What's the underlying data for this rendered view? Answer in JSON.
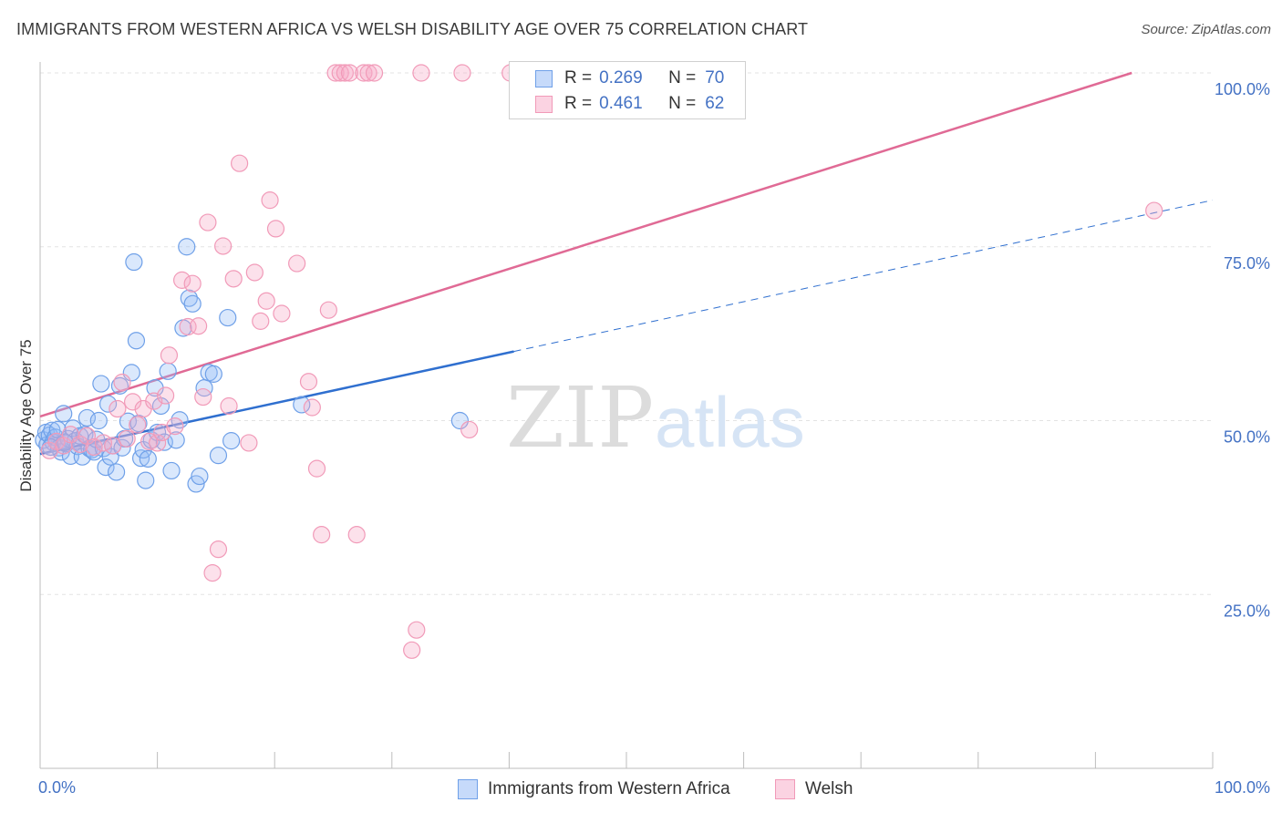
{
  "title": "IMMIGRANTS FROM WESTERN AFRICA VS WELSH DISABILITY AGE OVER 75 CORRELATION CHART",
  "source": "Source: ZipAtlas.com",
  "watermark": {
    "zip": "ZIP",
    "atlas": "atlas"
  },
  "colors": {
    "blue": "#6fa0e8",
    "blue_line": "#2f6fcf",
    "pink": "#f19ab8",
    "pink_line": "#e06a95",
    "tick": "#4472c4"
  },
  "legend_top": [
    {
      "r_key": "R =",
      "r_val": "0.269",
      "n_key": "N =",
      "n_val": "70"
    },
    {
      "r_key": "R =",
      "r_val": "0.461",
      "n_key": "N =",
      "n_val": "62"
    }
  ],
  "chart_data": {
    "type": "scatter",
    "title": "IMMIGRANTS FROM WESTERN AFRICA VS WELSH DISABILITY AGE OVER 75 CORRELATION CHART",
    "xlabel": "",
    "ylabel": "Disability Age Over 75",
    "xlim": [
      0,
      100
    ],
    "ylim": [
      0,
      100
    ],
    "x_ticks": [
      {
        "value": 0,
        "label": "0.0%"
      },
      {
        "value": 100,
        "label": "100.0%"
      }
    ],
    "y_ticks": [
      {
        "value": 25,
        "label": "25.0%"
      },
      {
        "value": 50,
        "label": "50.0%"
      },
      {
        "value": 75,
        "label": "75.0%"
      },
      {
        "value": 100,
        "label": "100.0%"
      }
    ],
    "grid": true,
    "legend": "bottom",
    "series": [
      {
        "name": "Immigrants from Western Africa",
        "color": "#6fa0e8",
        "points": [
          [
            0.3,
            47.2
          ],
          [
            0.5,
            48.3
          ],
          [
            0.6,
            46.5
          ],
          [
            0.8,
            47.9
          ],
          [
            1.0,
            48.6
          ],
          [
            1.1,
            46.9
          ],
          [
            1.3,
            47.6
          ],
          [
            1.5,
            48.7
          ],
          [
            1.6,
            46.1
          ],
          [
            1.8,
            45.5
          ],
          [
            2.0,
            51.0
          ],
          [
            2.2,
            46.7
          ],
          [
            2.4,
            47.4
          ],
          [
            2.6,
            44.9
          ],
          [
            2.8,
            48.9
          ],
          [
            3.0,
            47.1
          ],
          [
            3.2,
            46.3
          ],
          [
            3.4,
            47.8
          ],
          [
            3.6,
            44.8
          ],
          [
            3.8,
            48.0
          ],
          [
            4.0,
            50.4
          ],
          [
            4.2,
            46.0
          ],
          [
            4.4,
            45.8
          ],
          [
            4.6,
            45.5
          ],
          [
            4.8,
            47.3
          ],
          [
            5.0,
            50.0
          ],
          [
            5.2,
            55.3
          ],
          [
            5.4,
            46.0
          ],
          [
            5.6,
            43.3
          ],
          [
            5.8,
            52.4
          ],
          [
            6.0,
            44.8
          ],
          [
            6.2,
            46.4
          ],
          [
            6.5,
            42.6
          ],
          [
            6.8,
            55.0
          ],
          [
            7.0,
            46.1
          ],
          [
            7.2,
            47.4
          ],
          [
            7.5,
            49.9
          ],
          [
            7.8,
            56.9
          ],
          [
            8.0,
            72.8
          ],
          [
            8.2,
            61.5
          ],
          [
            8.4,
            49.6
          ],
          [
            8.6,
            44.6
          ],
          [
            8.8,
            45.8
          ],
          [
            9.0,
            41.4
          ],
          [
            9.2,
            44.5
          ],
          [
            9.5,
            47.2
          ],
          [
            9.8,
            54.7
          ],
          [
            10.0,
            48.3
          ],
          [
            10.3,
            52.1
          ],
          [
            10.6,
            46.9
          ],
          [
            10.9,
            57.1
          ],
          [
            11.2,
            42.8
          ],
          [
            11.6,
            47.2
          ],
          [
            11.9,
            50.1
          ],
          [
            12.2,
            63.3
          ],
          [
            12.5,
            75.0
          ],
          [
            12.7,
            67.6
          ],
          [
            13.0,
            66.8
          ],
          [
            13.3,
            40.9
          ],
          [
            13.6,
            42.0
          ],
          [
            14.0,
            54.7
          ],
          [
            14.4,
            56.9
          ],
          [
            14.8,
            56.7
          ],
          [
            15.2,
            45.0
          ],
          [
            16.0,
            64.8
          ],
          [
            16.3,
            47.1
          ],
          [
            22.3,
            52.3
          ],
          [
            35.8,
            50.0
          ],
          [
            0.9,
            46.2
          ],
          [
            2.1,
            46.9
          ]
        ]
      },
      {
        "name": "Welsh",
        "color": "#f19ab8",
        "points": [
          [
            0.8,
            45.7
          ],
          [
            1.4,
            47.0
          ],
          [
            2.0,
            46.4
          ],
          [
            2.6,
            48.0
          ],
          [
            3.4,
            46.6
          ],
          [
            4.0,
            47.8
          ],
          [
            4.6,
            46.2
          ],
          [
            5.4,
            46.8
          ],
          [
            6.2,
            46.4
          ],
          [
            6.6,
            51.7
          ],
          [
            7.0,
            55.5
          ],
          [
            7.4,
            47.4
          ],
          [
            7.9,
            52.7
          ],
          [
            8.3,
            49.4
          ],
          [
            8.8,
            51.7
          ],
          [
            9.3,
            47.0
          ],
          [
            9.7,
            52.8
          ],
          [
            10.0,
            46.8
          ],
          [
            10.4,
            48.3
          ],
          [
            10.7,
            53.6
          ],
          [
            11.0,
            59.4
          ],
          [
            11.5,
            49.2
          ],
          [
            12.1,
            70.2
          ],
          [
            12.6,
            63.5
          ],
          [
            13.0,
            69.7
          ],
          [
            13.5,
            63.6
          ],
          [
            13.9,
            53.4
          ],
          [
            14.3,
            78.5
          ],
          [
            14.7,
            28.1
          ],
          [
            15.2,
            31.5
          ],
          [
            15.6,
            75.1
          ],
          [
            16.1,
            52.1
          ],
          [
            16.5,
            70.4
          ],
          [
            17.0,
            87.0
          ],
          [
            17.8,
            46.8
          ],
          [
            18.3,
            71.3
          ],
          [
            18.8,
            64.3
          ],
          [
            19.3,
            67.2
          ],
          [
            19.6,
            81.7
          ],
          [
            20.1,
            77.6
          ],
          [
            20.6,
            65.4
          ],
          [
            21.9,
            72.6
          ],
          [
            22.9,
            55.6
          ],
          [
            23.2,
            51.9
          ],
          [
            23.6,
            43.1
          ],
          [
            24.0,
            33.6
          ],
          [
            24.6,
            65.9
          ],
          [
            25.2,
            100.0
          ],
          [
            25.6,
            100.0
          ],
          [
            26.0,
            100.0
          ],
          [
            26.4,
            100.0
          ],
          [
            27.0,
            33.6
          ],
          [
            27.6,
            100.0
          ],
          [
            28.0,
            100.0
          ],
          [
            28.5,
            100.0
          ],
          [
            31.7,
            17.0
          ],
          [
            32.1,
            19.9
          ],
          [
            32.5,
            100.0
          ],
          [
            36.0,
            100.0
          ],
          [
            36.6,
            48.7
          ],
          [
            40.1,
            100.0
          ],
          [
            95.0,
            80.2
          ]
        ]
      }
    ],
    "trendlines": [
      {
        "series": "Immigrants from Western Africa",
        "x_start": 0,
        "y_start": 45.2,
        "x_solid_end": 40.4,
        "x_end": 100,
        "y_end": 81.7,
        "color": "#2f6fcf"
      },
      {
        "series": "Welsh",
        "x_start": 0,
        "y_start": 50.6,
        "x_end": 93.1,
        "y_end": 100.0,
        "color": "#e06a95"
      }
    ]
  }
}
